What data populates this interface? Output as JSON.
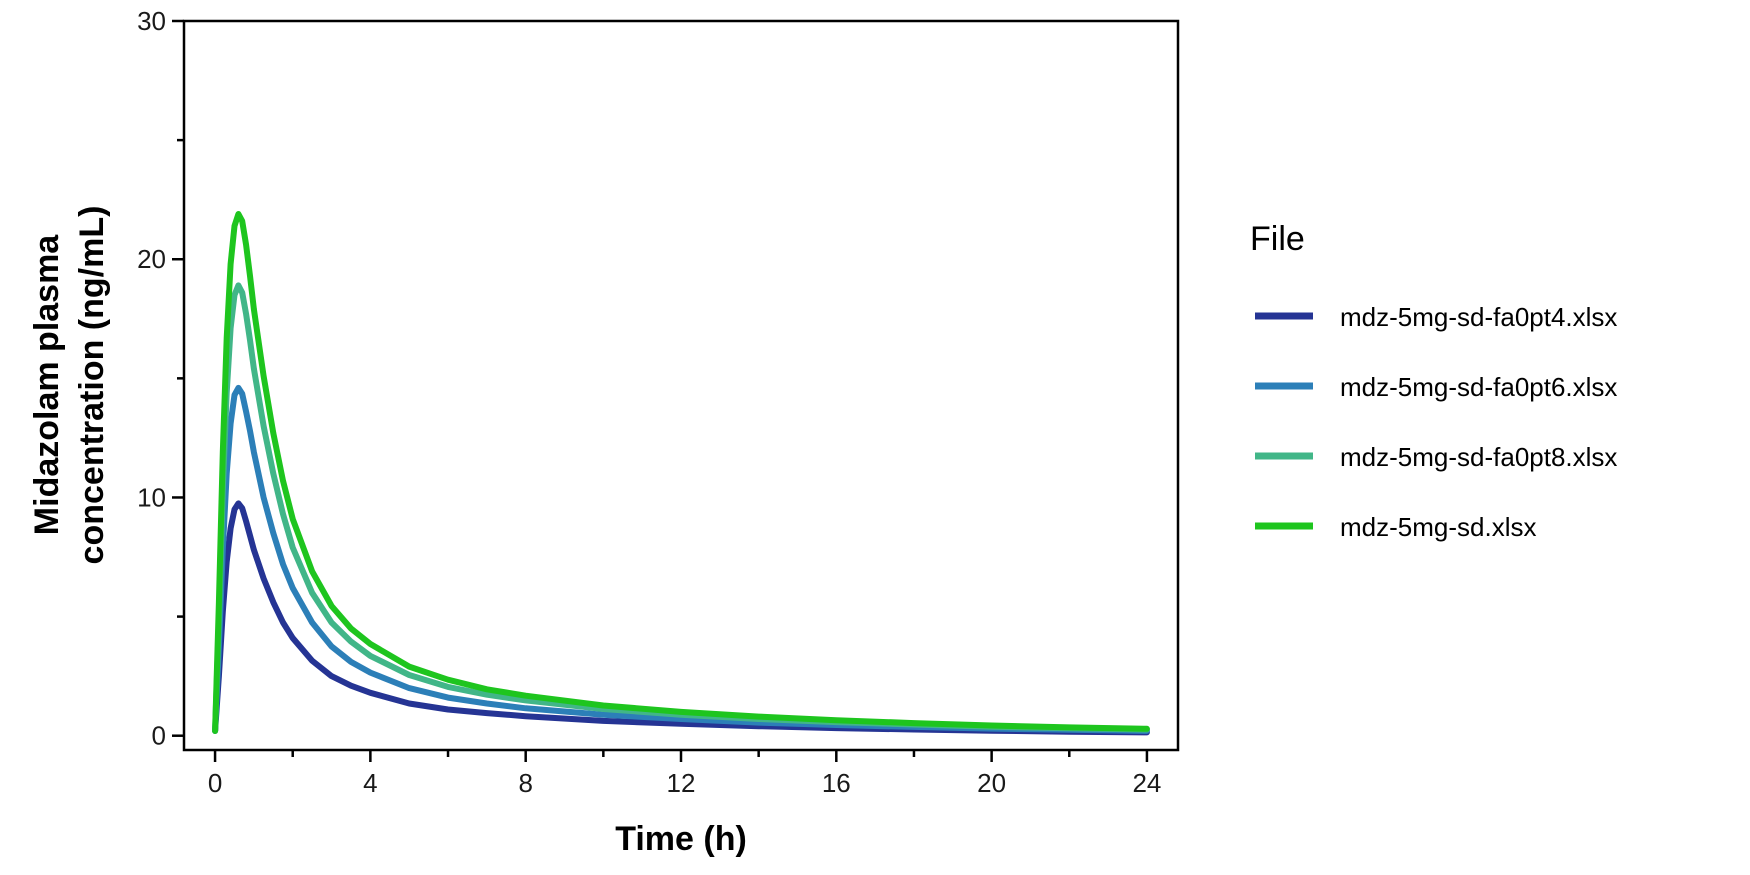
{
  "chart_data": {
    "type": "line",
    "xlabel": "Time (h)",
    "ylabel_lines": [
      "Midazolam plasma",
      "concentration (ng/mL)"
    ],
    "xlim": [
      -0.8,
      24.8
    ],
    "ylim": [
      -0.6,
      30
    ],
    "x_ticks": [
      0,
      4,
      8,
      12,
      16,
      20,
      24
    ],
    "x_minor_ticks": [
      2,
      6,
      10,
      14,
      18,
      22
    ],
    "y_ticks": [
      0,
      10,
      20,
      30
    ],
    "y_minor_ticks": [
      5,
      15,
      25
    ],
    "grid": false,
    "legend": {
      "title": "File",
      "position": "right"
    },
    "x": [
      0,
      0.1,
      0.2,
      0.3,
      0.4,
      0.5,
      0.6,
      0.7,
      0.8,
      0.9,
      1.0,
      1.25,
      1.5,
      1.75,
      2.0,
      2.5,
      3.0,
      3.5,
      4.0,
      5.0,
      6.0,
      7.0,
      8.0,
      10.0,
      12.0,
      14.0,
      16.0,
      18.0,
      20.0,
      22.0,
      24.0
    ],
    "series": [
      {
        "name": "mdz-5mg-sd-fa0pt4.xlsx",
        "color": "#253494",
        "values": [
          0.2,
          2.5,
          5.2,
          7.3,
          8.7,
          9.5,
          9.75,
          9.55,
          9.0,
          8.4,
          7.8,
          6.6,
          5.6,
          4.75,
          4.1,
          3.15,
          2.5,
          2.1,
          1.8,
          1.35,
          1.1,
          0.95,
          0.82,
          0.62,
          0.5,
          0.4,
          0.32,
          0.26,
          0.21,
          0.17,
          0.14
        ]
      },
      {
        "name": "mdz-5mg-sd-fa0pt6.xlsx",
        "color": "#2c7fb8",
        "values": [
          0.2,
          3.7,
          7.8,
          11.0,
          13.1,
          14.3,
          14.6,
          14.35,
          13.6,
          12.8,
          11.9,
          10.0,
          8.5,
          7.2,
          6.2,
          4.75,
          3.75,
          3.1,
          2.65,
          2.0,
          1.6,
          1.35,
          1.15,
          0.88,
          0.7,
          0.55,
          0.45,
          0.37,
          0.3,
          0.25,
          0.2
        ]
      },
      {
        "name": "mdz-5mg-sd-fa0pt8.xlsx",
        "color": "#41b688",
        "values": [
          0.2,
          4.9,
          10.3,
          14.4,
          17.1,
          18.5,
          18.9,
          18.6,
          17.7,
          16.6,
          15.4,
          13.0,
          11.0,
          9.3,
          7.9,
          6.0,
          4.75,
          3.95,
          3.35,
          2.55,
          2.05,
          1.72,
          1.48,
          1.12,
          0.88,
          0.7,
          0.57,
          0.47,
          0.38,
          0.31,
          0.26
        ]
      },
      {
        "name": "mdz-5mg-sd.xlsx",
        "color": "#1ec51e",
        "values": [
          0.2,
          5.6,
          11.9,
          16.7,
          19.8,
          21.4,
          21.9,
          21.6,
          20.6,
          19.3,
          17.9,
          15.1,
          12.7,
          10.7,
          9.1,
          6.9,
          5.45,
          4.5,
          3.85,
          2.9,
          2.35,
          1.95,
          1.68,
          1.27,
          1.0,
          0.8,
          0.65,
          0.53,
          0.43,
          0.35,
          0.29
        ]
      }
    ]
  }
}
